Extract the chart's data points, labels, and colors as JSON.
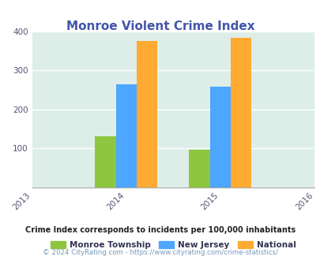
{
  "title": "Monroe Violent Crime Index",
  "years": [
    2014,
    2015
  ],
  "monroe": [
    130,
    96
  ],
  "new_jersey": [
    263,
    257
  ],
  "national": [
    375,
    383
  ],
  "bar_colors": {
    "monroe": "#8dc63f",
    "new_jersey": "#4da6ff",
    "national": "#ffaa33"
  },
  "xlim": [
    2013,
    2016
  ],
  "ylim": [
    0,
    400
  ],
  "yticks": [
    100,
    200,
    300,
    400
  ],
  "xticks": [
    2013,
    2014,
    2015,
    2016
  ],
  "legend_labels": [
    "Monroe Township",
    "New Jersey",
    "National"
  ],
  "footnote1": "Crime Index corresponds to incidents per 100,000 inhabitants",
  "footnote2": "© 2024 CityRating.com - https://www.cityrating.com/crime-statistics/",
  "title_color": "#4455aa",
  "legend_text_color": "#333355",
  "footnote1_color": "#222222",
  "footnote2_color": "#7799bb",
  "bg_color": "#ddeee8",
  "bar_width": 0.22
}
